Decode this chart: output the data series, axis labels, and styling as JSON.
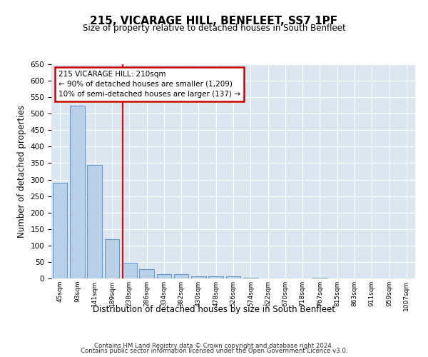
{
  "title": "215, VICARAGE HILL, BENFLEET, SS7 1PF",
  "subtitle": "Size of property relative to detached houses in South Benfleet",
  "xlabel": "Distribution of detached houses by size in South Benfleet",
  "ylabel": "Number of detached properties",
  "categories": [
    "45sqm",
    "93sqm",
    "141sqm",
    "189sqm",
    "238sqm",
    "286sqm",
    "334sqm",
    "382sqm",
    "430sqm",
    "478sqm",
    "526sqm",
    "574sqm",
    "622sqm",
    "670sqm",
    "718sqm",
    "767sqm",
    "815sqm",
    "863sqm",
    "911sqm",
    "959sqm",
    "1007sqm"
  ],
  "values": [
    290,
    525,
    345,
    120,
    47,
    28,
    12,
    12,
    7,
    7,
    7,
    2,
    0,
    0,
    0,
    2,
    0,
    0,
    0,
    0,
    0
  ],
  "bar_color": "#b8d0e8",
  "bar_edge_color": "#6699cc",
  "annotation_line1": "215 VICARAGE HILL: 210sqm",
  "annotation_line2": "← 90% of detached houses are smaller (1,209)",
  "annotation_line3": "10% of semi-detached houses are larger (137) →",
  "annotation_box_color": "#ffffff",
  "annotation_box_edge": "#cc0000",
  "red_line_x": 3.62,
  "ylim": [
    0,
    650
  ],
  "yticks": [
    0,
    50,
    100,
    150,
    200,
    250,
    300,
    350,
    400,
    450,
    500,
    550,
    600,
    650
  ],
  "background_color": "#dce6f0",
  "fig_background": "#ffffff",
  "footer_line1": "Contains HM Land Registry data © Crown copyright and database right 2024.",
  "footer_line2": "Contains public sector information licensed under the Open Government Licence v3.0."
}
